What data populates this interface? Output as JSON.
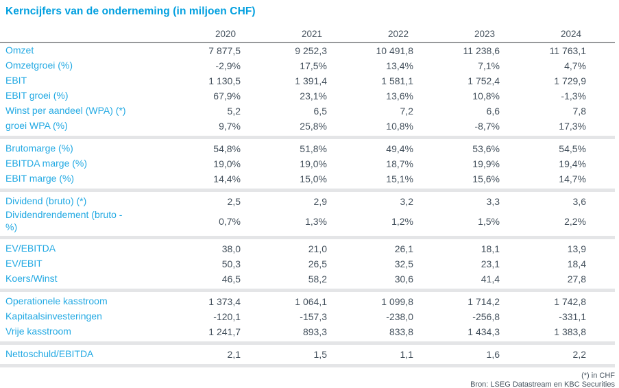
{
  "title": "Kerncijfers van de onderneming (in miljoen CHF)",
  "columns": [
    "2020",
    "2021",
    "2022",
    "2023",
    "2024"
  ],
  "sections": [
    {
      "rows": [
        {
          "label": "Omzet",
          "values": [
            "7 877,5",
            "9 252,3",
            "10 491,8",
            "11 238,6",
            "11 763,1"
          ]
        },
        {
          "label": "Omzetgroei (%)",
          "values": [
            "-2,9%",
            "17,5%",
            "13,4%",
            "7,1%",
            "4,7%"
          ]
        },
        {
          "label": "EBIT",
          "values": [
            "1 130,5",
            "1 391,4",
            "1 581,1",
            "1 752,4",
            "1 729,9"
          ]
        },
        {
          "label": "EBIT groei (%)",
          "values": [
            "67,9%",
            "23,1%",
            "13,6%",
            "10,8%",
            "-1,3%"
          ]
        },
        {
          "label": "Winst per aandeel (WPA) (*)",
          "values": [
            "5,2",
            "6,5",
            "7,2",
            "6,6",
            "7,8"
          ]
        },
        {
          "label": "groei WPA (%)",
          "values": [
            "9,7%",
            "25,8%",
            "10,8%",
            "-8,7%",
            "17,3%"
          ]
        }
      ]
    },
    {
      "rows": [
        {
          "label": "Brutomarge (%)",
          "values": [
            "54,8%",
            "51,8%",
            "49,4%",
            "53,6%",
            "54,5%"
          ]
        },
        {
          "label": "EBITDA marge (%)",
          "values": [
            "19,0%",
            "19,0%",
            "18,7%",
            "19,9%",
            "19,4%"
          ]
        },
        {
          "label": "EBIT marge (%)",
          "values": [
            "14,4%",
            "15,0%",
            "15,1%",
            "15,6%",
            "14,7%"
          ]
        }
      ]
    },
    {
      "rows": [
        {
          "label": "Dividend (bruto) (*)",
          "values": [
            "2,5",
            "2,9",
            "3,2",
            "3,3",
            "3,6"
          ]
        },
        {
          "label": "Dividendrendement (bruto -\n%)",
          "values": [
            "0,7%",
            "1,3%",
            "1,2%",
            "1,5%",
            "2,2%"
          ]
        }
      ]
    },
    {
      "rows": [
        {
          "label": "EV/EBITDA",
          "values": [
            "38,0",
            "21,0",
            "26,1",
            "18,1",
            "13,9"
          ]
        },
        {
          "label": "EV/EBIT",
          "values": [
            "50,3",
            "26,5",
            "32,5",
            "23,1",
            "18,4"
          ]
        },
        {
          "label": "Koers/Winst",
          "values": [
            "46,5",
            "58,2",
            "30,6",
            "41,4",
            "27,8"
          ]
        }
      ]
    },
    {
      "rows": [
        {
          "label": "Operationele kasstroom",
          "values": [
            "1 373,4",
            "1 064,1",
            "1 099,8",
            "1 714,2",
            "1 742,8"
          ]
        },
        {
          "label": "Kapitaalsinvesteringen",
          "values": [
            "-120,1",
            "-157,3",
            "-238,0",
            "-256,8",
            "-331,1"
          ]
        },
        {
          "label": "Vrije kasstroom",
          "values": [
            "1 241,7",
            "893,3",
            "833,8",
            "1 434,3",
            "1 383,8"
          ]
        }
      ]
    },
    {
      "rows": [
        {
          "label": "Nettoschuld/EBITDA",
          "values": [
            "2,1",
            "1,5",
            "1,1",
            "1,6",
            "2,2"
          ]
        }
      ]
    }
  ],
  "footnotes": [
    "(*) in CHF",
    "Bron: LSEG Datastream en KBC Securities"
  ],
  "colors": {
    "title": "#009fdf",
    "accent": "#22a9e3",
    "text": "#44515d",
    "header_rule": "#97999b",
    "section_bar": "#e4e5e7"
  }
}
